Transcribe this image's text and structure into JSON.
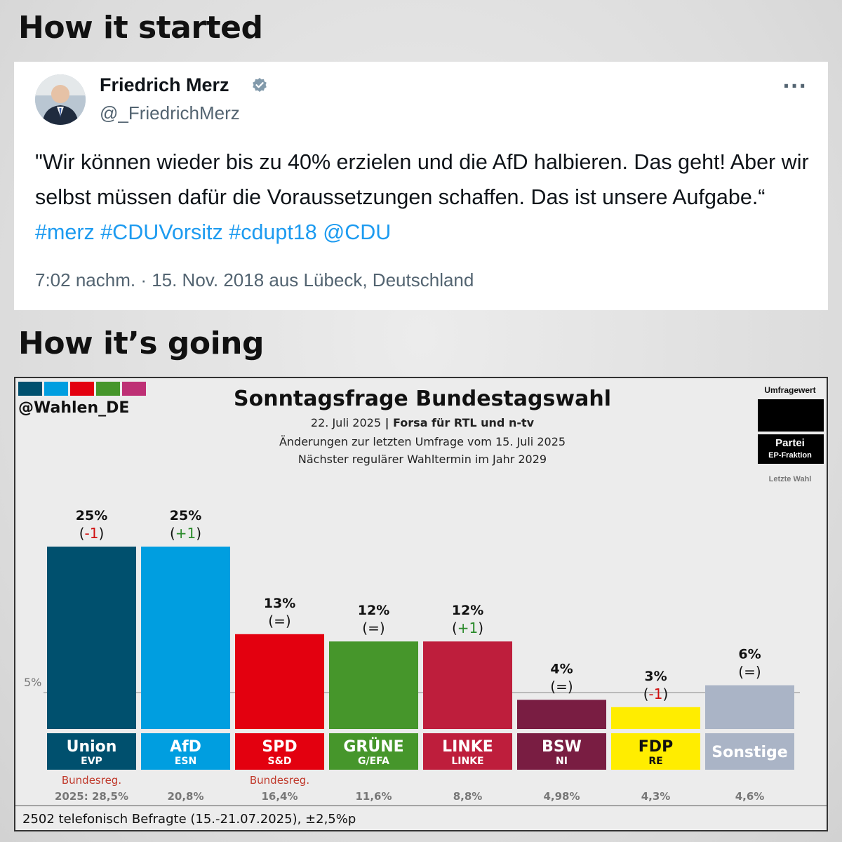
{
  "headings": {
    "top": "How it started",
    "bottom": "How it’s going"
  },
  "tweet": {
    "name": "Friedrich Merz",
    "handle": "@_FriedrichMerz",
    "more": "···",
    "text": "\"Wir können wieder bis zu 40% erzielen und die AfD halbieren. Das geht! Aber wir selbst müssen dafür die Voraussetzungen schaffen. Das ist unsere Aufgabe.“",
    "hashtags": "#merz #CDUVorsitz #cdupt18 @CDU",
    "meta": "7:02 nachm. · 15. Nov. 2018 aus Lübeck, Deutschland",
    "colors": {
      "link": "#1d9bf0",
      "verified": "#829aab"
    }
  },
  "chart_panel": {
    "brand": "@Wahlen_DE",
    "brand_swatches": [
      "#00506e",
      "#009ee0",
      "#e3000f",
      "#46962b",
      "#be3075"
    ],
    "legend": {
      "top_label": "Umfragewert",
      "party_label": "Partei",
      "group_label": "EP-Fraktion",
      "bottom_label": "Letzte Wahl"
    },
    "threshold_label": "5%",
    "footer": "2502 telefonisch Befragte (15.-21.07.2025), ±2,5%p"
  },
  "chart_data": {
    "type": "bar",
    "title": "Sonntagsfrage Bundestagswahl",
    "subtitle_date": "22. Juli 2025",
    "subtitle_separator": " | ",
    "subtitle_source": "Forsa für RTL und n-tv",
    "subtitle_change": "Änderungen zur letzten Umfrage vom 15. Juli 2025",
    "subtitle_next": "Nächster regulärer Wahltermin im Jahr 2029",
    "unit": "%",
    "ylim": [
      0,
      26
    ],
    "threshold": 5,
    "categories": [
      "Union",
      "AfD",
      "SPD",
      "GRÜNE",
      "LINKE",
      "BSW",
      "FDP",
      "Sonstige"
    ],
    "ep_groups": [
      "EVP",
      "ESN",
      "S&D",
      "G/EFA",
      "LINKE",
      "NI",
      "RE",
      ""
    ],
    "values": [
      25,
      25,
      13,
      12,
      12,
      4,
      3,
      6
    ],
    "value_labels": [
      "25%",
      "25%",
      "13%",
      "12%",
      "12%",
      "4%",
      "3%",
      "6%"
    ],
    "changes": [
      "-1",
      "+1",
      "=",
      "=",
      "+1",
      "=",
      "-1",
      "="
    ],
    "colors": [
      "#00506e",
      "#009ee0",
      "#e3000f",
      "#46962b",
      "#be1e3c",
      "#791d42",
      "#ffed00",
      "#aab4c6"
    ],
    "label_text_colors": [
      "#ffffff",
      "#ffffff",
      "#ffffff",
      "#ffffff",
      "#ffffff",
      "#ffffff",
      "#111111",
      "#ffffff"
    ],
    "change_colors": {
      "up": "#2a8a2a",
      "down": "#d01010",
      "same": "#111111"
    },
    "government_note": [
      "Bundesreg.",
      "",
      "Bundesreg.",
      "",
      "",
      "",
      "",
      ""
    ],
    "last_election_labels": [
      "2025: 28,5%",
      "20,8%",
      "16,4%",
      "11,6%",
      "8,8%",
      "4,98%",
      "4,3%",
      "4,6%"
    ],
    "last_election_values": [
      28.5,
      20.8,
      16.4,
      11.6,
      8.8,
      4.98,
      4.3,
      4.6
    ],
    "grid": false,
    "legend": "top-right"
  }
}
